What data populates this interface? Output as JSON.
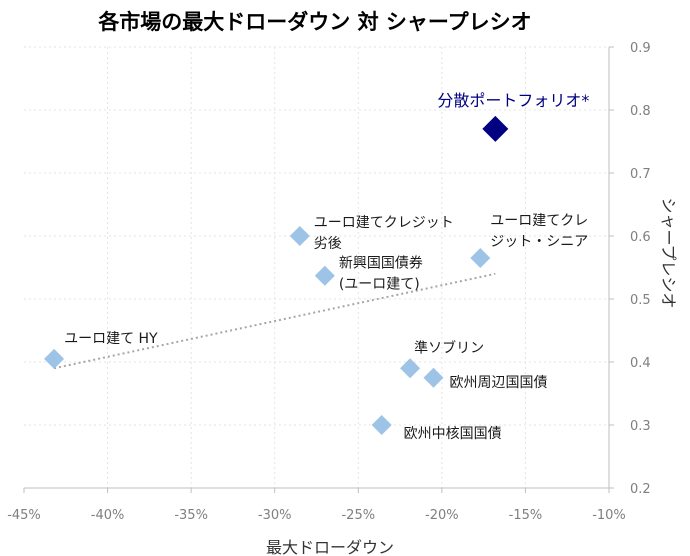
{
  "chart_data": {
    "type": "scatter",
    "title": "各市場の最大ドローダウン 対 シャープレシオ",
    "xlabel": "最大ドローダウン",
    "ylabel": "シャープレシオ",
    "xlim": [
      -0.45,
      -0.1
    ],
    "ylim": [
      0.2,
      0.9
    ],
    "x_ticks": [
      -0.45,
      -0.4,
      -0.35,
      -0.3,
      -0.25,
      -0.2,
      -0.15,
      -0.1
    ],
    "x_tick_labels": [
      "-45%",
      "-40%",
      "-35%",
      "-30%",
      "-25%",
      "-20%",
      "-15%",
      "-10%"
    ],
    "y_ticks": [
      0.2,
      0.3,
      0.4,
      0.5,
      0.6,
      0.7,
      0.8,
      0.9
    ],
    "y_tick_labels": [
      "0.2",
      "0.3",
      "0.4",
      "0.5",
      "0.6",
      "0.7",
      "0.8",
      "0.9"
    ],
    "y_axis_position": "right",
    "grid": true,
    "points": [
      {
        "label": "分散ポートフォリオ*",
        "x": -0.168,
        "y": 0.77,
        "highlight": true
      },
      {
        "label": "ユーロ建てクレジット劣後",
        "lines": [
          "ユーロ建てクレジット",
          "劣後"
        ],
        "x": -0.285,
        "y": 0.6
      },
      {
        "label": "ユーロ建てクレジット・シニア",
        "lines": [
          "ユーロ建てクレ",
          "ジット・シニア"
        ],
        "x": -0.177,
        "y": 0.565
      },
      {
        "label": "新興国国債券(ユーロ建て)",
        "lines": [
          "新興国国債券",
          "(ユーロ建て)"
        ],
        "x": -0.27,
        "y": 0.537
      },
      {
        "label": "ユーロ建て HY",
        "x": -0.432,
        "y": 0.405
      },
      {
        "label": "準ソブリン",
        "x": -0.219,
        "y": 0.39
      },
      {
        "label": "欧州周辺国国債",
        "x": -0.205,
        "y": 0.375
      },
      {
        "label": "欧州中核国国債",
        "x": -0.236,
        "y": 0.3
      }
    ],
    "trendline": {
      "style": "dotted",
      "from": [
        -0.432,
        0.39
      ],
      "to": [
        -0.168,
        0.54
      ]
    },
    "colors": {
      "point": "#9dc3e6",
      "highlight": "#000080",
      "trendline": "#a6a6a6",
      "grid": "#e3e3e3"
    }
  }
}
